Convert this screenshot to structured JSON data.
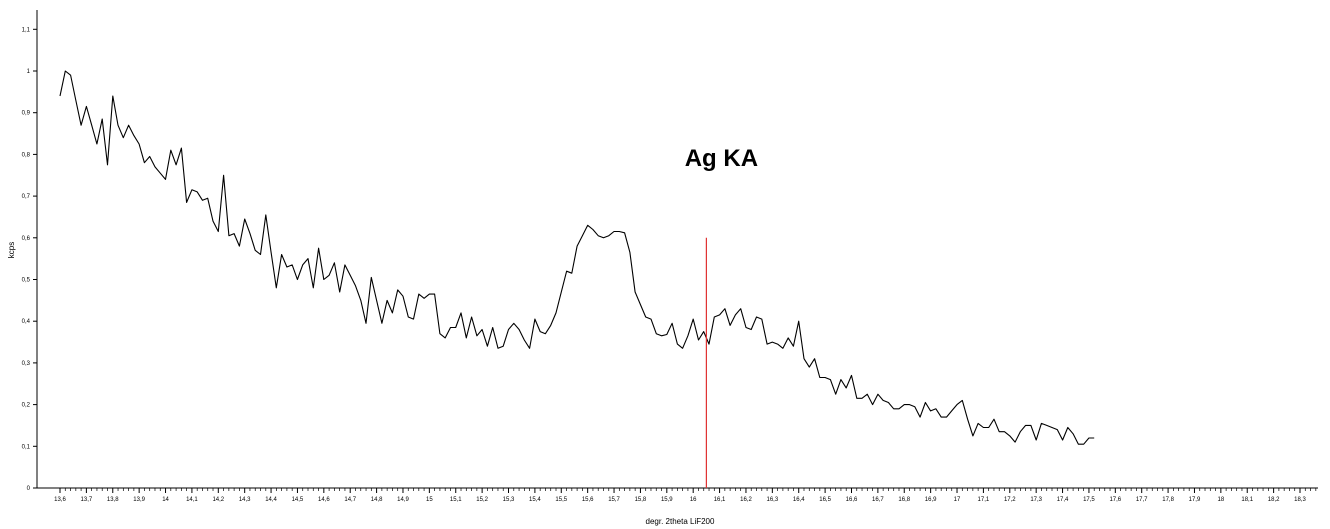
{
  "chart_data": {
    "type": "line",
    "xlabel": "degr. 2theta LiF200",
    "ylabel": "kcps",
    "xlim": [
      13.6,
      18.33
    ],
    "ylim": [
      0,
      1.15
    ],
    "grid": false,
    "x_ticks": [
      "13,6",
      "13,7",
      "13,8",
      "13,9",
      "14",
      "14,1",
      "14,2",
      "14,3",
      "14,4",
      "14,5",
      "14,6",
      "14,7",
      "14,8",
      "14,9",
      "15",
      "15,1",
      "15,2",
      "15,3",
      "15,4",
      "15,5",
      "15,6",
      "15,7",
      "15,8",
      "15,9",
      "16",
      "16,1",
      "16,2",
      "16,3",
      "16,4",
      "16,5",
      "16,6",
      "16,7",
      "16,8",
      "16,9",
      "17",
      "17,1",
      "17,2",
      "17,3",
      "17,4",
      "17,5",
      "17,6",
      "17,7",
      "17,8",
      "17,9",
      "18",
      "18,1",
      "18,2",
      "18,3"
    ],
    "y_ticks": [
      "0",
      "0,1",
      "0,2",
      "0,3",
      "0,4",
      "0,5",
      "0,6",
      "0,7",
      "0,8",
      "0,9",
      "1",
      "1,1"
    ],
    "annotations": [
      {
        "text": "Ag KA",
        "x": 16.05,
        "line_top": 0.6,
        "color": "#e03030"
      }
    ],
    "series": [
      {
        "color": "#000000",
        "x_start": 13.6,
        "x_step": 0.02,
        "values": [
          0.94,
          1.0,
          0.99,
          0.93,
          0.87,
          0.915,
          0.87,
          0.825,
          0.885,
          0.775,
          0.94,
          0.87,
          0.84,
          0.87,
          0.845,
          0.825,
          0.78,
          0.795,
          0.77,
          0.755,
          0.74,
          0.81,
          0.775,
          0.815,
          0.685,
          0.715,
          0.71,
          0.69,
          0.695,
          0.64,
          0.615,
          0.75,
          0.605,
          0.61,
          0.58,
          0.645,
          0.61,
          0.57,
          0.56,
          0.655,
          0.565,
          0.48,
          0.56,
          0.53,
          0.535,
          0.5,
          0.535,
          0.55,
          0.48,
          0.575,
          0.5,
          0.51,
          0.54,
          0.47,
          0.535,
          0.51,
          0.485,
          0.45,
          0.395,
          0.505,
          0.45,
          0.395,
          0.45,
          0.42,
          0.475,
          0.46,
          0.41,
          0.405,
          0.465,
          0.455,
          0.465,
          0.465,
          0.37,
          0.36,
          0.385,
          0.385,
          0.42,
          0.36,
          0.41,
          0.365,
          0.38,
          0.34,
          0.385,
          0.335,
          0.34,
          0.38,
          0.395,
          0.38,
          0.355,
          0.335,
          0.405,
          0.375,
          0.37,
          0.39,
          0.42,
          0.47,
          0.52,
          0.515,
          0.58,
          0.605,
          0.63,
          0.62,
          0.605,
          0.6,
          0.605,
          0.615,
          0.615,
          0.612,
          0.565,
          0.47,
          0.44,
          0.41,
          0.405,
          0.37,
          0.365,
          0.368,
          0.395,
          0.345,
          0.335,
          0.365,
          0.405,
          0.355,
          0.375,
          0.345,
          0.41,
          0.415,
          0.43,
          0.39,
          0.415,
          0.43,
          0.385,
          0.38,
          0.41,
          0.405,
          0.345,
          0.35,
          0.345,
          0.335,
          0.36,
          0.34,
          0.4,
          0.31,
          0.29,
          0.31,
          0.265,
          0.265,
          0.26,
          0.225,
          0.26,
          0.24,
          0.27,
          0.215,
          0.215,
          0.225,
          0.2,
          0.225,
          0.21,
          0.205,
          0.19,
          0.19,
          0.2,
          0.2,
          0.195,
          0.17,
          0.205,
          0.185,
          0.19,
          0.17,
          0.17,
          0.185,
          0.2,
          0.21,
          0.165,
          0.125,
          0.155,
          0.145,
          0.145,
          0.165,
          0.135,
          0.135,
          0.125,
          0.11,
          0.135,
          0.15,
          0.15,
          0.115,
          0.155,
          0.15,
          0.145,
          0.14,
          0.115,
          0.145,
          0.13,
          0.105,
          0.105,
          0.12,
          0.12
        ]
      }
    ]
  }
}
